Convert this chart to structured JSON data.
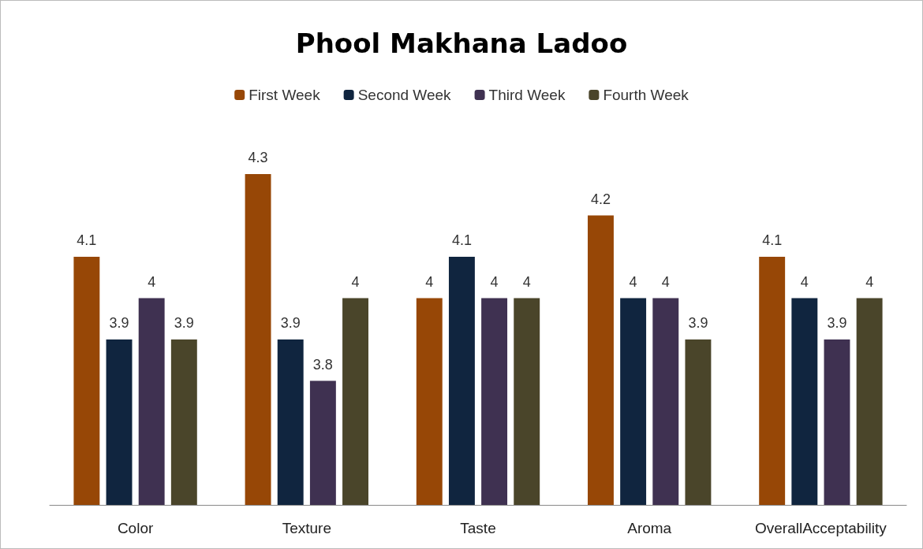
{
  "chart_data": {
    "type": "bar",
    "title": "Phool Makhana Ladoo",
    "categories": [
      "Color",
      "Texture",
      "Taste",
      "Aroma",
      "OverallAcceptability"
    ],
    "series": [
      {
        "name": "First Week",
        "color": "#974706",
        "values": [
          4.1,
          4.3,
          4,
          4.2,
          4.1
        ]
      },
      {
        "name": "Second Week",
        "color": "#10253f",
        "values": [
          3.9,
          3.9,
          4.1,
          4,
          4
        ]
      },
      {
        "name": "Third Week",
        "color": "#3f3151",
        "values": [
          4,
          3.8,
          4,
          4,
          3.9
        ]
      },
      {
        "name": "Fourth Week",
        "color": "#4a452a",
        "values": [
          3.9,
          4,
          4,
          3.9,
          4
        ]
      }
    ],
    "ylim": [
      3.5,
      4.3
    ],
    "tick_labels": "x",
    "grid": false,
    "legend": "top",
    "data_labels": true
  }
}
